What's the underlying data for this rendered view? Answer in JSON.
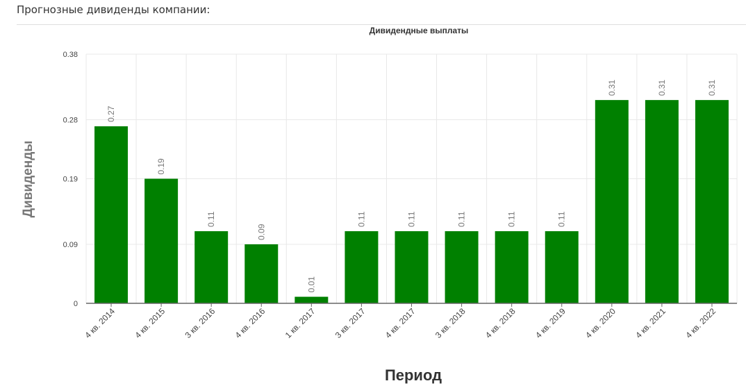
{
  "page": {
    "heading": "Прогнозные дивиденды компании:"
  },
  "colors": {
    "bar": "#008000",
    "grid": "#e8e8e8",
    "axis": "#666666",
    "label": "#777777"
  },
  "chart_data": {
    "type": "bar",
    "title": "Дивидендные выплаты",
    "xlabel": "Период",
    "ylabel": "Дивиденды",
    "ylim": [
      0,
      0.38
    ],
    "yticks": [
      "0",
      "0.09",
      "0.19",
      "0.28",
      "0.38"
    ],
    "grid": true,
    "categories": [
      "4 кв. 2014",
      "4 кв. 2015",
      "3 кв. 2016",
      "4 кв. 2016",
      "1 кв. 2017",
      "3 кв. 2017",
      "4 кв. 2017",
      "3 кв. 2018",
      "4 кв. 2018",
      "4 кв. 2019",
      "4 кв. 2020",
      "4 кв. 2021",
      "4 кв. 2022"
    ],
    "values": [
      0.27,
      0.19,
      0.11,
      0.09,
      0.01,
      0.11,
      0.11,
      0.11,
      0.11,
      0.11,
      0.31,
      0.31,
      0.31
    ],
    "value_labels": [
      "0.27",
      "0.19",
      "0.11",
      "0.09",
      "0.01",
      "0.11",
      "0.11",
      "0.11",
      "0.11",
      "0.11",
      "0.31",
      "0.31",
      "0.31"
    ]
  }
}
